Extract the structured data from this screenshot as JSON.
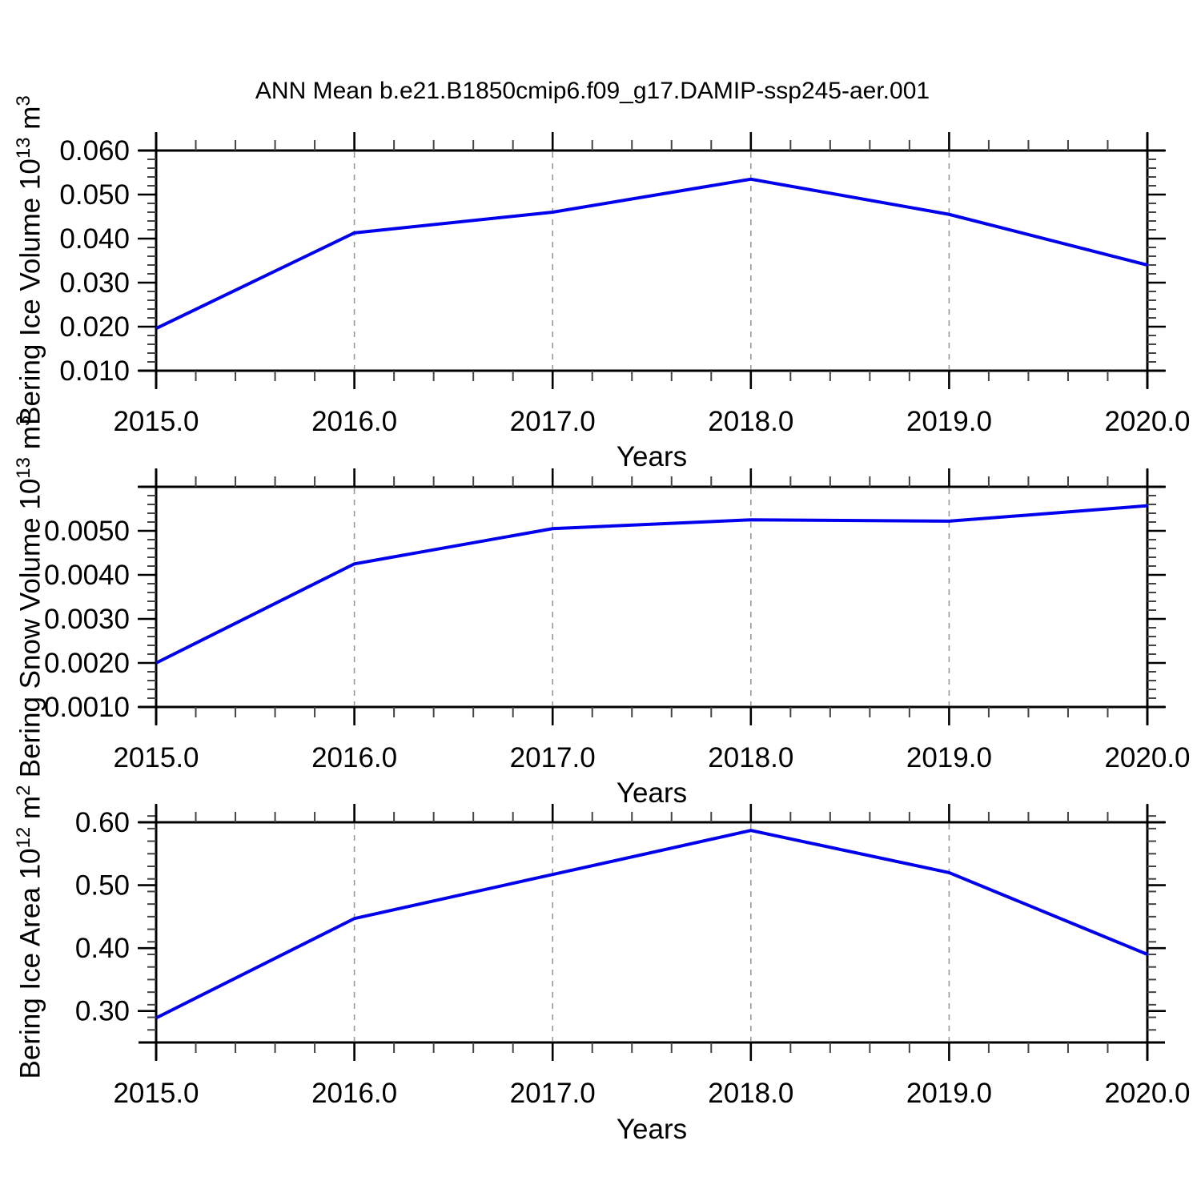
{
  "title": "ANN Mean b.e21.B1850cmip6.f09_g17.DAMIP-ssp245-aer.001",
  "style": {
    "line_color": "#0000ee",
    "axis_color": "#000000",
    "grid_color": "#999999",
    "background": "#ffffff"
  },
  "chart_data": [
    {
      "type": "line",
      "ylabel": {
        "text": "Bering Ice Volume 10",
        "sup": "13",
        "text2": " m",
        "sup2": "3"
      },
      "xlabel": "Years",
      "x": [
        2015,
        2016,
        2017,
        2018,
        2019,
        2020
      ],
      "x_tick_labels": [
        "2015.0",
        "2016.0",
        "2017.0",
        "2018.0",
        "2019.0",
        "2020.0"
      ],
      "values": [
        0.0196,
        0.0413,
        0.046,
        0.0535,
        0.0455,
        0.034
      ],
      "xlim": [
        2015,
        2020
      ],
      "ylim": [
        0.01,
        0.06
      ],
      "y_ticks": [
        {
          "v": 0.06,
          "label": "0.060"
        },
        {
          "v": 0.05,
          "label": "0.050"
        },
        {
          "v": 0.04,
          "label": "0.040"
        },
        {
          "v": 0.03,
          "label": "0.030"
        },
        {
          "v": 0.02,
          "label": "0.020"
        },
        {
          "v": 0.01,
          "label": "0.010"
        }
      ],
      "y_minor_step": 0.002,
      "x_minor_step": 0.2,
      "gridlines_x": [
        2016,
        2017,
        2018,
        2019
      ],
      "grid_style": "vertical-dashed",
      "legend": "none"
    },
    {
      "type": "line",
      "ylabel": {
        "text": "Bering Snow Volume 10",
        "sup": "13",
        "text2": " m",
        "sup2": "3"
      },
      "xlabel": "Years",
      "x": [
        2015,
        2016,
        2017,
        2018,
        2019,
        2020
      ],
      "x_tick_labels": [
        "2015.0",
        "2016.0",
        "2017.0",
        "2018.0",
        "2019.0",
        "2020.0"
      ],
      "values": [
        0.002,
        0.00425,
        0.00505,
        0.00525,
        0.00522,
        0.00557
      ],
      "xlim": [
        2015,
        2020
      ],
      "ylim": [
        0.001,
        0.006
      ],
      "y_ticks": [
        {
          "v": 0.006,
          "label": ""
        },
        {
          "v": 0.005,
          "label": "0.0050"
        },
        {
          "v": 0.004,
          "label": "0.0040"
        },
        {
          "v": 0.003,
          "label": "0.0030"
        },
        {
          "v": 0.002,
          "label": "0.0020"
        },
        {
          "v": 0.001,
          "label": "0.0010"
        }
      ],
      "y_minor_step": 0.0002,
      "x_minor_step": 0.2,
      "gridlines_x": [
        2016,
        2017,
        2018,
        2019
      ],
      "grid_style": "vertical-dashed",
      "legend": "none"
    },
    {
      "type": "line",
      "ylabel": {
        "text": "Bering Ice Area 10",
        "sup": "12",
        "text2": " m",
        "sup2": "2"
      },
      "xlabel": "Years",
      "x": [
        2015,
        2016,
        2017,
        2018,
        2019,
        2020
      ],
      "x_tick_labels": [
        "2015.0",
        "2016.0",
        "2017.0",
        "2018.0",
        "2019.0",
        "2020.0"
      ],
      "values": [
        0.289,
        0.447,
        0.517,
        0.587,
        0.52,
        0.39
      ],
      "xlim": [
        2015,
        2020
      ],
      "ylim": [
        0.25,
        0.6
      ],
      "y_ticks": [
        {
          "v": 0.6,
          "label": "0.60"
        },
        {
          "v": 0.5,
          "label": "0.50"
        },
        {
          "v": 0.4,
          "label": "0.40"
        },
        {
          "v": 0.3,
          "label": "0.30"
        }
      ],
      "y_minor_step": 0.02,
      "x_minor_step": 0.2,
      "gridlines_x": [
        2016,
        2017,
        2018,
        2019
      ],
      "grid_style": "vertical-dashed",
      "legend": "none"
    }
  ]
}
